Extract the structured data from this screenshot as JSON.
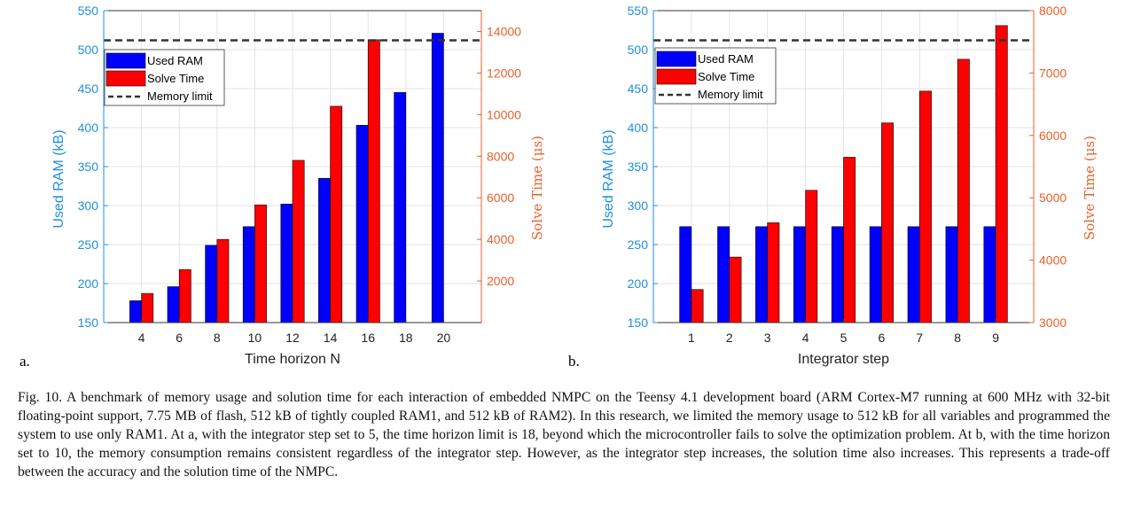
{
  "caption": "Fig. 10.   A benchmark of memory usage and solution time for each interaction of embedded NMPC on the Teensy 4.1 development board (ARM Cortex-M7 running at 600 MHz with 32-bit floating-point support, 7.75 MB of flash, 512 kB of tightly coupled RAM1, and 512 kB of RAM2). In this research, we limited the memory usage to 512 kB for all variables and programmed the system to use only RAM1. At a, with the integrator step set to 5, the time horizon limit is 18, beyond which the microcontroller fails to solve the optimization problem. At b, with the time horizon set to 10, the memory consumption remains consistent regardless of the integrator step. However, as the integrator step increases, the solution time also increases. This represents a trade-off between the accuracy and the solution time of the NMPC.",
  "colors": {
    "ram": "#0000ff",
    "time": "#ff0000",
    "left_axis": "#1f8fe0",
    "right_axis": "#e8602a",
    "limit": "#333333"
  },
  "chart_data": [
    {
      "type": "bar",
      "panel": "a.",
      "xlabel": "Time horizon N",
      "categories": [
        "4",
        "6",
        "8",
        "10",
        "12",
        "14",
        "16",
        "18",
        "20"
      ],
      "ylabel": "Used RAM (kB)",
      "ylim": [
        150,
        550
      ],
      "yticks": [
        150,
        200,
        250,
        300,
        350,
        400,
        450,
        500,
        550
      ],
      "y2label": "Solve Time (μs)",
      "y2lim": [
        0,
        15000
      ],
      "y2ticks": [
        2000,
        4000,
        6000,
        8000,
        10000,
        12000,
        14000
      ],
      "series": [
        {
          "name": "Used RAM",
          "axis": "left",
          "values": [
            178,
            196,
            249,
            273,
            302,
            335,
            403,
            445,
            521
          ]
        },
        {
          "name": "Solve Time",
          "axis": "right",
          "values": [
            1400,
            2550,
            4000,
            5660,
            7800,
            10400,
            13600,
            null,
            null
          ]
        }
      ],
      "reference_line": {
        "name": "Memory limit",
        "axis": "left",
        "value": 512,
        "style": "dashed"
      },
      "legend": [
        "Used RAM",
        "Solve Time",
        "Memory limit"
      ],
      "legend_position": "top-left",
      "grid": true
    },
    {
      "type": "bar",
      "panel": "b.",
      "xlabel": "Integrator step",
      "categories": [
        "1",
        "2",
        "3",
        "4",
        "5",
        "6",
        "7",
        "8",
        "9"
      ],
      "ylabel": "Used RAM (kB)",
      "ylim": [
        150,
        550
      ],
      "yticks": [
        150,
        200,
        250,
        300,
        350,
        400,
        450,
        500,
        550
      ],
      "y2label": "Solve Time (μs)",
      "y2lim": [
        3000,
        8000
      ],
      "y2ticks": [
        3000,
        4000,
        5000,
        6000,
        7000,
        8000
      ],
      "series": [
        {
          "name": "Used RAM",
          "axis": "left",
          "values": [
            273,
            273,
            273,
            273,
            273,
            273,
            273,
            273,
            273
          ]
        },
        {
          "name": "Solve Time",
          "axis": "right",
          "values": [
            3530,
            4050,
            4600,
            5120,
            5650,
            6200,
            6710,
            7220,
            7760
          ]
        }
      ],
      "reference_line": {
        "name": "Memory limit",
        "axis": "left",
        "value": 512,
        "style": "dashed"
      },
      "legend": [
        "Used RAM",
        "Solve Time",
        "Memory limit"
      ],
      "legend_position": "top-left",
      "grid": true
    }
  ]
}
